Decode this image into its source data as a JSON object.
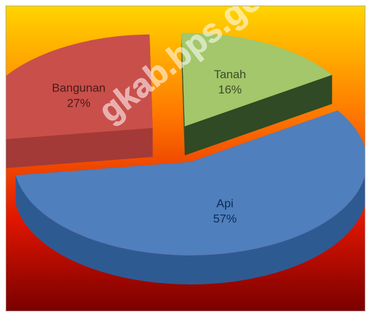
{
  "chart_data": {
    "type": "pie",
    "style": "3d-exploded",
    "title": "",
    "slices": [
      {
        "label": "Tanah",
        "value": 16,
        "value_label": "16%",
        "color": "#a3c76a",
        "side_color": "#2f4a24",
        "text_color": "#3d4a2a"
      },
      {
        "label": "Api",
        "value": 57,
        "value_label": "57%",
        "color": "#4f7fbd",
        "side_color": "#2e5a92",
        "text_color": "#0f2a55"
      },
      {
        "label": "Bangunan",
        "value": 27,
        "value_label": "27%",
        "color": "#c94f4b",
        "side_color": "#a33a37",
        "text_color": "#4a1a16"
      }
    ],
    "background": {
      "gradient": [
        "#ffd400",
        "#ff6a00",
        "#e01000",
        "#8b0000"
      ]
    }
  },
  "watermark": {
    "text": "gkab.bps.go.id"
  }
}
